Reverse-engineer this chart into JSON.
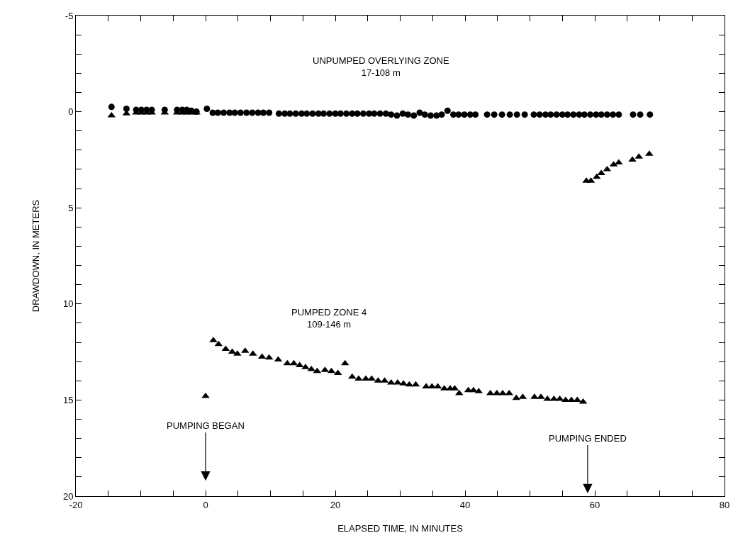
{
  "chart_data": {
    "type": "scatter",
    "xlabel": "ELAPSED TIME, IN MINUTES",
    "ylabel": "DRAWDOWN, IN METERS",
    "xlim": [
      -20,
      80
    ],
    "xticks": [
      -20,
      {
        "value": -15,
        "label": null
      },
      {
        "value": -10,
        "label": null
      },
      {
        "value": -5,
        "label": null
      },
      0,
      {
        "value": 5,
        "label": null
      },
      {
        "value": 10,
        "label": null
      },
      {
        "value": 15,
        "label": null
      },
      20,
      {
        "value": 25,
        "label": null
      },
      {
        "value": 30,
        "label": null
      },
      {
        "value": 35,
        "label": null
      },
      40,
      {
        "value": 45,
        "label": null
      },
      {
        "value": 50,
        "label": null
      },
      {
        "value": 55,
        "label": null
      },
      60,
      {
        "value": 65,
        "label": null
      },
      {
        "value": 70,
        "label": null
      },
      {
        "value": 75,
        "label": null
      },
      80
    ],
    "ylim": [
      20,
      -5
    ],
    "yticks": [
      -5,
      {
        "value": -4,
        "label": null
      },
      {
        "value": -3,
        "label": null
      },
      {
        "value": -2,
        "label": null
      },
      {
        "value": -1,
        "label": null
      },
      0,
      {
        "value": 1,
        "label": null
      },
      {
        "value": 2,
        "label": null
      },
      {
        "value": 3,
        "label": null
      },
      {
        "value": 4,
        "label": null
      },
      5,
      {
        "value": 6,
        "label": null
      },
      {
        "value": 7,
        "label": null
      },
      {
        "value": 8,
        "label": null
      },
      {
        "value": 9,
        "label": null
      },
      10,
      {
        "value": 11,
        "label": null
      },
      {
        "value": 12,
        "label": null
      },
      {
        "value": 13,
        "label": null
      },
      {
        "value": 14,
        "label": null
      },
      15,
      {
        "value": 16,
        "label": null
      },
      {
        "value": 17,
        "label": null
      },
      {
        "value": 18,
        "label": null
      },
      {
        "value": 19,
        "label": null
      },
      20
    ],
    "series": [
      {
        "color": "#000000",
        "marker": "triangle",
        "x": [
          -14.5,
          -12.2,
          -10.7,
          -9.9,
          -9.1,
          -8.3,
          -6.3,
          -4.4,
          -3.6,
          -2.9,
          -2.2,
          -1.4,
          0,
          1.2,
          2.0,
          3.1,
          4.1,
          4.9,
          6.1,
          7.3,
          8.7,
          9.8,
          11.2,
          12.6,
          13.6,
          14.5,
          15.4,
          16.3,
          17.2,
          18.4,
          19.4,
          20.4,
          21.5,
          22.6,
          23.6,
          24.7,
          25.6,
          26.6,
          27.6,
          28.6,
          29.6,
          30.5,
          31.4,
          32.4,
          34.0,
          34.9,
          35.8,
          36.8,
          37.7,
          38.4,
          39.1,
          40.5,
          41.3,
          42.1,
          43.9,
          44.9,
          45.8,
          46.8,
          47.9,
          48.9,
          50.7,
          51.7,
          52.7,
          53.7,
          54.6,
          55.5,
          56.4,
          57.3,
          58.2,
          58.7,
          59.4,
          60.3,
          61.0,
          61.9,
          62.9,
          63.7,
          65.8,
          66.8,
          68.4
        ],
        "values": [
          0.2,
          0.1,
          0.05,
          0.05,
          0.05,
          0.05,
          0.05,
          0.05,
          0.05,
          0.05,
          0.05,
          0.05,
          14.8,
          11.9,
          12.1,
          12.35,
          12.5,
          12.6,
          12.45,
          12.6,
          12.75,
          12.8,
          12.9,
          13.1,
          13.1,
          13.2,
          13.3,
          13.4,
          13.5,
          13.45,
          13.5,
          13.6,
          13.1,
          13.8,
          13.9,
          13.9,
          13.9,
          14.0,
          14.0,
          14.1,
          14.1,
          14.15,
          14.2,
          14.2,
          14.3,
          14.3,
          14.3,
          14.4,
          14.4,
          14.4,
          14.65,
          14.5,
          14.5,
          14.55,
          14.65,
          14.65,
          14.65,
          14.65,
          14.9,
          14.85,
          14.85,
          14.85,
          14.95,
          14.95,
          14.95,
          15.0,
          15.0,
          15.0,
          15.1,
          3.6,
          3.6,
          3.4,
          3.2,
          3.0,
          2.75,
          2.65,
          2.5,
          2.35,
          2.2
        ]
      },
      {
        "color": "#000000",
        "marker": "circle",
        "x": [
          -14.5,
          -12.2,
          -10.7,
          -9.9,
          -9.1,
          -8.3,
          -6.3,
          -4.4,
          -3.6,
          -2.9,
          -2.2,
          -1.4,
          0.2,
          1.1,
          1.9,
          2.8,
          3.7,
          4.5,
          5.4,
          6.3,
          7.2,
          8.1,
          8.9,
          9.8,
          11.3,
          12.2,
          13.0,
          13.9,
          14.8,
          15.6,
          16.5,
          17.4,
          18.2,
          19.1,
          20.0,
          20.8,
          21.7,
          22.6,
          23.4,
          24.3,
          25.2,
          26.0,
          26.9,
          27.8,
          28.6,
          29.5,
          30.4,
          31.2,
          32.1,
          33.0,
          33.8,
          34.7,
          35.6,
          36.4,
          37.3,
          38.2,
          39.0,
          39.9,
          40.8,
          41.6,
          43.4,
          44.5,
          45.7,
          46.9,
          48.0,
          49.2,
          50.6,
          51.5,
          52.4,
          53.2,
          54.1,
          55.0,
          55.8,
          56.7,
          57.6,
          58.4,
          59.3,
          60.2,
          61.0,
          61.9,
          62.8,
          63.7,
          65.9,
          67.0,
          68.5
        ],
        "values": [
          -0.25,
          -0.15,
          -0.1,
          -0.1,
          -0.1,
          -0.1,
          -0.1,
          -0.1,
          -0.1,
          -0.1,
          -0.05,
          0,
          -0.15,
          0.05,
          0.05,
          0.05,
          0.05,
          0.05,
          0.05,
          0.05,
          0.05,
          0.05,
          0.05,
          0.05,
          0.1,
          0.1,
          0.1,
          0.1,
          0.1,
          0.1,
          0.1,
          0.1,
          0.1,
          0.1,
          0.1,
          0.1,
          0.1,
          0.1,
          0.1,
          0.1,
          0.1,
          0.1,
          0.1,
          0.1,
          0.15,
          0.2,
          0.1,
          0.15,
          0.2,
          0.05,
          0.15,
          0.2,
          0.2,
          0.15,
          -0.05,
          0.15,
          0.15,
          0.15,
          0.15,
          0.15,
          0.15,
          0.15,
          0.15,
          0.15,
          0.15,
          0.15,
          0.15,
          0.15,
          0.15,
          0.15,
          0.15,
          0.15,
          0.15,
          0.15,
          0.15,
          0.15,
          0.15,
          0.15,
          0.15,
          0.15,
          0.15,
          0.15,
          0.15,
          0.15,
          0.15
        ]
      }
    ],
    "annotations": [
      "UNPUMPED OVERLYING ZONE\n17-108 m",
      "PUMPED ZONE 4\n109-146 m",
      "PUMPING BEGAN",
      "PUMPING ENDED"
    ]
  }
}
